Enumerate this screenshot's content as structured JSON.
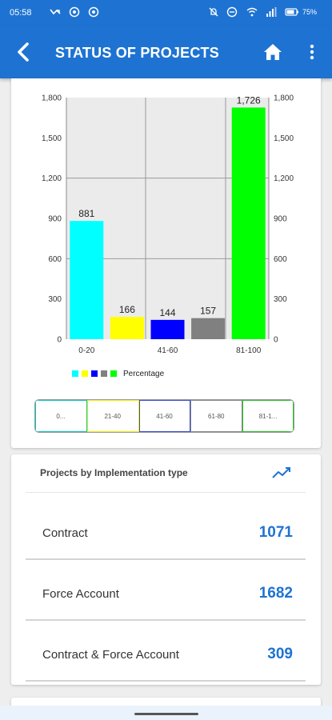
{
  "status_bar": {
    "time": "05:58",
    "battery": "75%",
    "left_icons": [
      "missed-call-icon",
      "at-sign-icon",
      "at-sign-icon"
    ],
    "right_icons": [
      "mute-icon",
      "dnd-icon",
      "wifi-icon",
      "signal-icon",
      "battery-icon"
    ]
  },
  "app_bar": {
    "title": "STATUS OF PROJECTS",
    "back_icon": "back-arrow-icon",
    "home_icon": "home-icon",
    "menu_icon": "more-vert-icon"
  },
  "chart_data": {
    "type": "bar",
    "categories": [
      "0-20",
      "21-40",
      "41-60",
      "61-80",
      "81-100"
    ],
    "x_tick_labels_shown": [
      "0-20",
      "",
      "41-60",
      "",
      "81-100"
    ],
    "values": [
      881,
      166,
      144,
      157,
      1726
    ],
    "value_labels": [
      "881",
      "166",
      "144",
      "157",
      "1,726"
    ],
    "colors": [
      "#00ffff",
      "#ffff00",
      "#0000ff",
      "#808080",
      "#00ff00"
    ],
    "ylim": [
      0,
      1800
    ],
    "y_ticks": [
      0,
      300,
      600,
      900,
      1200,
      1500,
      1800
    ],
    "y_tick_labels": [
      "0",
      "300",
      "600",
      "900",
      "1,200",
      "1,500",
      "1,800"
    ],
    "right_axis": true,
    "grid": true,
    "legend": {
      "label": "Percentage",
      "placement": "bottom-left"
    }
  },
  "segments": {
    "labels": [
      "0...",
      "21-40",
      "41-60",
      "61-80",
      "81-1..."
    ],
    "border_colors": [
      "#00c8c8",
      "#f5f000",
      "#3a4bd6",
      "#888888",
      "#28c228"
    ]
  },
  "implementation": {
    "header": "Projects by Implementation type",
    "header_icon": "trending-up-icon",
    "accent_color": "#1e73d2",
    "rows": [
      {
        "label": "Contract",
        "value": "1071"
      },
      {
        "label": "Force Account",
        "value": "1682"
      },
      {
        "label": "Contract & Force Account",
        "value": "309"
      }
    ]
  }
}
